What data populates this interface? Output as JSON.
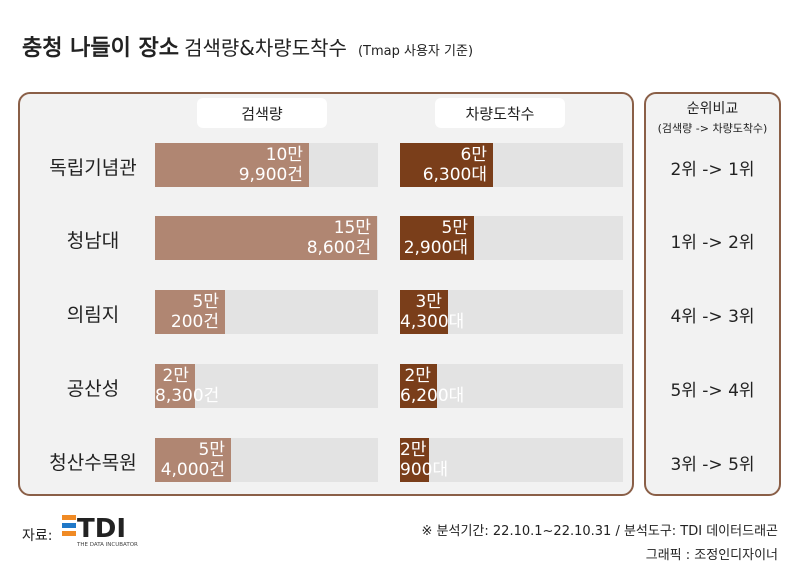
{
  "header": {
    "title_main": "충청 나들이 장소",
    "title_sub": "검색량&차량도착수",
    "title_note": "(Tmap 사용자 기준)"
  },
  "columns": {
    "search": "검색량",
    "arrivals": "차량도착수",
    "rank_title": "순위비교",
    "rank_subtitle": "(검색량 -> 차량도착수)"
  },
  "chart_data": {
    "type": "bar",
    "categories": [
      "독립기념관",
      "청남대",
      "의림지",
      "공산성",
      "청산수목원"
    ],
    "series": [
      {
        "name": "검색량",
        "values": [
          109900,
          158600,
          50200,
          28300,
          54000
        ],
        "labels_top": [
          "10만",
          "15만",
          "5만",
          "2만",
          "5만"
        ],
        "labels_bottom": [
          "9,900건",
          "8,600건",
          "200건",
          "8,300건",
          "4,000건"
        ],
        "color": "#b08672"
      },
      {
        "name": "차량도착수",
        "values": [
          66300,
          52900,
          34300,
          26200,
          20900
        ],
        "labels_top": [
          "6만",
          "5만",
          "3만",
          "2만",
          "2만"
        ],
        "labels_bottom": [
          "6,300대",
          "2,900대",
          "4,300대",
          "6,200대",
          "900대"
        ],
        "color": "#7a3e1a"
      }
    ],
    "ranks": [
      "2위 -> 1위",
      "1위 -> 2위",
      "4위 -> 3위",
      "5위 -> 4위",
      "3위 -> 5위"
    ],
    "track_color": "#e3e3e3"
  },
  "footer": {
    "source_label": "자료:",
    "logo_text": "TDI",
    "logo_tagline": "THE DATA INCUBATOR",
    "analysis": "※ 분석기간: 22.10.1~22.10.31  / 분석도구: TDI 데이터드래곤",
    "graphic": "그래픽 : 조정인디자이너"
  },
  "colors": {
    "frame": "#8a5f47",
    "panel_bg": "#f2f2f2",
    "logo_orange": "#f08a24",
    "logo_blue": "#1f78c8",
    "logo_dark": "#222222"
  }
}
